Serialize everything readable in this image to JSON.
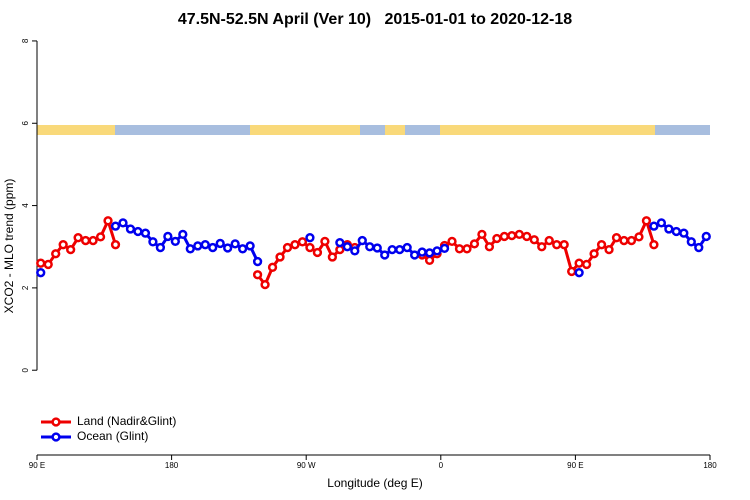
{
  "chart_data": {
    "type": "line",
    "title": "47.5N-52.5N April (Ver 10)   2015-01-01 to 2020-12-18",
    "x_label": "Longitude (deg E)",
    "y_label": "XCO2 - MLO trend (ppm)",
    "xlim": [
      90,
      540
    ],
    "xticks": [
      {
        "value": 90,
        "label": "90 E"
      },
      180,
      {
        "value": 270,
        "label": "90 W"
      },
      {
        "value": 360,
        "label": "0"
      },
      {
        "value": 450,
        "label": "90 E"
      },
      {
        "value": 540,
        "label": "180"
      }
    ],
    "ylim": [
      -2.06,
      8.12
    ],
    "yticks": [
      0,
      2,
      4,
      6,
      8
    ],
    "legend": "bottom-left",
    "x": [
      92.5,
      97.5,
      102.5,
      107.5,
      112.5,
      117.5,
      122.5,
      127.5,
      132.5,
      137.5,
      142.5,
      147.5,
      152.5,
      157.5,
      162.5,
      167.5,
      172.5,
      177.5,
      182.5,
      187.5,
      192.5,
      197.5,
      202.5,
      207.5,
      212.5,
      217.5,
      222.5,
      227.5,
      232.5,
      237.5,
      242.5,
      247.5,
      252.5,
      257.5,
      262.5,
      267.5,
      272.5,
      277.5,
      282.5,
      287.5,
      292.5,
      297.5,
      302.5,
      307.5,
      312.5,
      317.5,
      322.5,
      327.5,
      332.5,
      337.5,
      342.5,
      347.5,
      352.5,
      357.5,
      362.5,
      367.5,
      372.5,
      377.5,
      382.5,
      387.5,
      392.5,
      397.5,
      402.5,
      407.5,
      412.5,
      417.5,
      422.5,
      427.5,
      432.5,
      437.5,
      442.5,
      447.5,
      452.5,
      457.5,
      462.5,
      467.5,
      472.5,
      477.5,
      482.5,
      487.5,
      492.5,
      497.5,
      502.5,
      507.5,
      512.5,
      517.5,
      522.5,
      527.5,
      532.5,
      537.5
    ],
    "series": [
      {
        "name": "Land (Nadir&Glint)",
        "color": "#ee0000",
        "values": [
          2.6,
          2.57,
          2.83,
          3.05,
          2.93,
          3.22,
          3.15,
          3.15,
          3.24,
          3.63,
          3.05,
          null,
          null,
          null,
          null,
          null,
          null,
          null,
          null,
          null,
          null,
          null,
          null,
          null,
          null,
          null,
          null,
          null,
          null,
          2.32,
          2.08,
          2.5,
          2.75,
          2.98,
          3.05,
          3.12,
          2.98,
          2.86,
          3.13,
          2.75,
          2.93,
          3.05,
          2.98,
          null,
          null,
          null,
          null,
          null,
          null,
          null,
          null,
          2.8,
          2.67,
          2.83,
          3.03,
          3.13,
          2.95,
          2.95,
          3.07,
          3.3,
          3.0,
          3.2,
          3.25,
          3.27,
          3.3,
          3.25,
          3.17,
          3.0,
          3.15,
          3.05,
          3.05,
          2.4,
          2.6,
          2.57,
          2.83,
          3.05,
          2.93,
          3.22,
          3.15,
          3.15,
          3.24,
          3.63,
          3.05,
          null,
          null,
          null,
          null,
          null,
          null,
          null
        ]
      },
      {
        "name": "Ocean (Glint)",
        "color": "#0000ee",
        "values": [
          2.37,
          null,
          null,
          null,
          null,
          null,
          null,
          null,
          null,
          null,
          3.5,
          3.58,
          3.43,
          3.37,
          3.33,
          3.12,
          2.98,
          3.25,
          3.13,
          3.3,
          2.95,
          3.02,
          3.05,
          2.98,
          3.08,
          2.97,
          3.07,
          2.95,
          3.02,
          2.64,
          null,
          null,
          null,
          null,
          null,
          null,
          3.22,
          null,
          null,
          null,
          3.1,
          3.0,
          2.9,
          3.15,
          3.0,
          2.97,
          2.8,
          2.93,
          2.93,
          2.98,
          2.8,
          2.87,
          2.85,
          2.9,
          2.96,
          null,
          null,
          null,
          null,
          null,
          null,
          null,
          null,
          null,
          null,
          null,
          null,
          null,
          null,
          null,
          null,
          null,
          2.37,
          null,
          null,
          null,
          null,
          null,
          null,
          null,
          null,
          null,
          3.5,
          3.58,
          3.43,
          3.37,
          3.33,
          3.12,
          2.98,
          3.25
        ]
      }
    ]
  }
}
